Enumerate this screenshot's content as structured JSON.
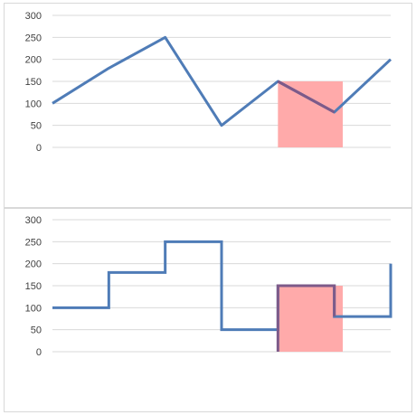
{
  "chart_data": [
    {
      "type": "line",
      "title": "",
      "xlabel": "",
      "ylabel": "",
      "ylim": [
        0,
        300
      ],
      "yticks": [
        0,
        50,
        100,
        150,
        200,
        250,
        300
      ],
      "grid": true,
      "x": [
        1,
        2,
        3,
        4,
        5,
        6,
        7
      ],
      "series": [
        {
          "values": [
            100,
            180,
            250,
            50,
            150,
            80,
            200
          ],
          "color": "#4f7cb7"
        }
      ],
      "highlight": {
        "from_x": 5,
        "to_x": 7,
        "y": [
          0,
          150
        ],
        "color": "#ffaaaa",
        "highlighted_line_color": "#7d5a89"
      }
    },
    {
      "type": "line",
      "step": true,
      "title": "",
      "xlabel": "",
      "ylabel": "",
      "ylim": [
        0,
        300
      ],
      "yticks": [
        0,
        50,
        100,
        150,
        200,
        250,
        300
      ],
      "grid": true,
      "x": [
        1,
        2,
        3,
        4,
        5,
        6,
        7
      ],
      "series": [
        {
          "values": [
            100,
            180,
            250,
            50,
            150,
            80,
            200
          ],
          "color": "#4f7cb7"
        }
      ],
      "highlight": {
        "from_x": 5,
        "to_x": 7,
        "y": [
          0,
          150
        ],
        "color": "#ffaaaa",
        "highlighted_line_color": "#7d5a89"
      }
    }
  ]
}
